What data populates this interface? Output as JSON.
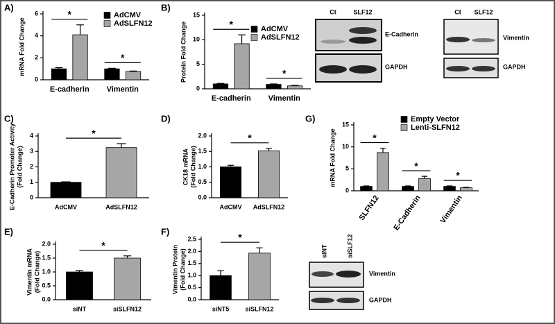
{
  "chart_data": [
    {
      "type": "bar",
      "panel": "A)",
      "y_label": [
        "mRNA Fold Change"
      ],
      "categories": [
        "E-cadherin",
        "Vimentin"
      ],
      "series": [
        {
          "name": "AdCMV",
          "color": "#000000",
          "values": [
            1,
            1
          ],
          "errors": [
            0.1,
            0.05
          ]
        },
        {
          "name": "AdSLFN12",
          "color": "#a6a6a6",
          "values": [
            4.1,
            0.75
          ],
          "errors": [
            0.9,
            0.05
          ]
        }
      ],
      "significance": [
        "*",
        "*"
      ],
      "ylim": [
        0,
        6
      ],
      "yticks": [
        0,
        2,
        4,
        6
      ]
    },
    {
      "type": "bar",
      "panel": "B)",
      "y_label": [
        "Protein Fold Change"
      ],
      "categories": [
        "E-cadherin",
        "Vimentin"
      ],
      "series": [
        {
          "name": "AdCMV",
          "color": "#000000",
          "values": [
            1,
            0.9
          ],
          "errors": [
            0.1,
            0.1
          ]
        },
        {
          "name": "AdSLFN12",
          "color": "#a6a6a6",
          "values": [
            9.2,
            0.6
          ],
          "errors": [
            1.8,
            0.1
          ]
        }
      ],
      "significance": [
        "*",
        "*"
      ],
      "ylim": [
        0,
        15
      ],
      "yticks": [
        0,
        5,
        10,
        15
      ]
    },
    {
      "type": "bar",
      "panel": "C)",
      "y_label": [
        "E-Cadherin Promoter Activity",
        "(Fold Change)"
      ],
      "categories": [
        "AdCMV",
        "AdSLFN12"
      ],
      "values": [
        1,
        3.25
      ],
      "errors": [
        0.03,
        0.25
      ],
      "colors": [
        "#000000",
        "#a6a6a6"
      ],
      "significance": "*",
      "ylim": [
        0,
        4
      ],
      "yticks": [
        0,
        1,
        2,
        3,
        4
      ]
    },
    {
      "type": "bar",
      "panel": "D)",
      "y_label": [
        "CK18 mRNA",
        "(Fold Change)"
      ],
      "categories": [
        "AdCMV",
        "AdSLFN12"
      ],
      "values": [
        1.0,
        1.52
      ],
      "errors": [
        0.05,
        0.08
      ],
      "colors": [
        "#000000",
        "#a6a6a6"
      ],
      "significance": "*",
      "ylim": [
        0,
        2
      ],
      "yticks": [
        {
          "value": 0,
          "label": "0.0"
        },
        {
          "value": 0.5,
          "label": "0.5"
        },
        {
          "value": 1,
          "label": "1.0"
        },
        {
          "value": 1.5,
          "label": "1.5"
        },
        {
          "value": 2,
          "label": "2.0"
        }
      ]
    },
    {
      "type": "bar",
      "panel": "G)",
      "y_label": [
        "mRNA Fold Change"
      ],
      "categories": [
        "SLFN12",
        "E-Cadherin",
        "Vimentin"
      ],
      "series": [
        {
          "name": "Empty Vector",
          "color": "#000000",
          "values": [
            1,
            1,
            1
          ],
          "errors": [
            0.1,
            0.1,
            0.1
          ]
        },
        {
          "name": "Lenti-SLFN12",
          "color": "#a6a6a6",
          "values": [
            8.7,
            2.8,
            0.7
          ],
          "errors": [
            1.0,
            0.5,
            0.1
          ]
        }
      ],
      "significance": [
        "*",
        "*",
        "*"
      ],
      "ylim": [
        0,
        15
      ],
      "yticks": [
        0,
        5,
        10,
        15
      ]
    },
    {
      "type": "bar",
      "panel": "E)",
      "y_label": [
        "Vimentin mRNA",
        "(Fold Change)"
      ],
      "categories": [
        "siNT",
        "siSLFN12"
      ],
      "values": [
        1.0,
        1.5
      ],
      "errors": [
        0.05,
        0.08
      ],
      "colors": [
        "#000000",
        "#a6a6a6"
      ],
      "significance": "*",
      "ylim": [
        0,
        2
      ],
      "yticks": [
        {
          "value": 0,
          "label": "0.0"
        },
        {
          "value": 0.5,
          "label": "0.5"
        },
        {
          "value": 1,
          "label": "1.0"
        },
        {
          "value": 1.5,
          "label": "1.5"
        },
        {
          "value": 2,
          "label": "2.0"
        }
      ]
    },
    {
      "type": "bar",
      "panel": "F)",
      "y_label": [
        "Vimentin Protein",
        "(Fold Change)"
      ],
      "categories": [
        "siNT5",
        "siSLFN12"
      ],
      "values": [
        1.0,
        1.93
      ],
      "errors": [
        0.2,
        0.22
      ],
      "colors": [
        "#000000",
        "#a6a6a6"
      ],
      "significance": "*",
      "ylim": [
        0,
        2.5
      ],
      "yticks": [
        {
          "value": 0,
          "label": "0.0"
        },
        {
          "value": 0.5,
          "label": "0.5"
        },
        {
          "value": 1,
          "label": "1.0"
        },
        {
          "value": 1.5,
          "label": "1.5"
        },
        {
          "value": 2,
          "label": "2.0"
        },
        {
          "value": 2.5,
          "label": "2.5"
        }
      ]
    }
  ],
  "blots": [
    {
      "lanes": [
        "Ct",
        "SLF12"
      ],
      "bands": [
        "E-Cadherin",
        "GAPDH"
      ]
    },
    {
      "lanes": [
        "Ct",
        "SLF12"
      ],
      "bands": [
        "Vimentin",
        "GAPDH"
      ]
    },
    {
      "lanes": [
        "siNT",
        "siSLF12"
      ],
      "bands": [
        "Vimentin",
        "GAPDH"
      ]
    }
  ]
}
